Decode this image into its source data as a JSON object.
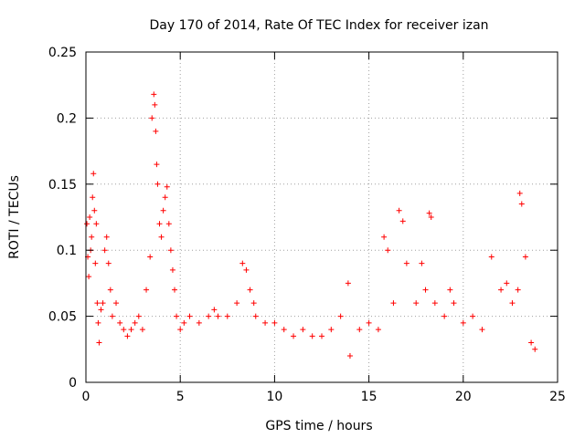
{
  "chart_data": {
    "type": "scatter",
    "title": "Day 170 of 2014, Rate Of TEC Index for receiver izan",
    "xlabel": "GPS time / hours",
    "ylabel": "ROTI / TECUs",
    "xlim": [
      0,
      25
    ],
    "ylim": [
      0,
      0.25
    ],
    "x_ticks": [
      0,
      5,
      10,
      15,
      20,
      25
    ],
    "x_tick_labels": [
      "0",
      "5",
      "10",
      "15",
      "20",
      "25"
    ],
    "y_ticks": [
      0,
      0.05,
      0.1,
      0.15,
      0.2,
      0.25
    ],
    "y_tick_labels": [
      "0",
      "0.05",
      "0.1",
      "0.15",
      "0.2",
      "0.25"
    ],
    "grid": true,
    "marker": "+",
    "color": "#ff0000",
    "series": [
      {
        "x": [
          0.05,
          0.1,
          0.15,
          0.2,
          0.25,
          0.3,
          0.35,
          0.4,
          0.45,
          0.5,
          0.55,
          0.6,
          0.65,
          0.7,
          0.8,
          0.9,
          1.0,
          1.1,
          1.2,
          1.3,
          1.4,
          1.6,
          1.8,
          2.0,
          2.2,
          2.4,
          2.6,
          2.8,
          3.0,
          3.2,
          3.4,
          3.5,
          3.6,
          3.65,
          3.7,
          3.75,
          3.8,
          3.9,
          4.0,
          4.1,
          4.2,
          4.3,
          4.4,
          4.5,
          4.6,
          4.7,
          4.8,
          5.0,
          5.2,
          5.5,
          6.0,
          6.5,
          6.8,
          7.0,
          7.5,
          8.0,
          8.3,
          8.5,
          8.7,
          8.9,
          9.0,
          9.5,
          10.0,
          10.5,
          11.0,
          11.5,
          12.0,
          12.5,
          13.0,
          13.5,
          13.9,
          14.0,
          14.5,
          15.0,
          15.5,
          15.8,
          16.0,
          16.3,
          16.6,
          16.8,
          17.0,
          17.5,
          17.8,
          18.0,
          18.2,
          18.3,
          18.5,
          19.0,
          19.3,
          19.5,
          20.0,
          20.5,
          21.0,
          21.5,
          22.0,
          22.3,
          22.6,
          22.9,
          23.0,
          23.1,
          23.3,
          23.6,
          23.8
        ],
        "y": [
          0.12,
          0.095,
          0.08,
          0.125,
          0.1,
          0.11,
          0.14,
          0.158,
          0.13,
          0.09,
          0.12,
          0.06,
          0.045,
          0.03,
          0.055,
          0.06,
          0.1,
          0.11,
          0.09,
          0.07,
          0.05,
          0.06,
          0.045,
          0.04,
          0.035,
          0.04,
          0.045,
          0.05,
          0.04,
          0.07,
          0.095,
          0.2,
          0.218,
          0.21,
          0.19,
          0.165,
          0.15,
          0.12,
          0.11,
          0.13,
          0.14,
          0.148,
          0.12,
          0.1,
          0.085,
          0.07,
          0.05,
          0.04,
          0.045,
          0.05,
          0.045,
          0.05,
          0.055,
          0.05,
          0.05,
          0.06,
          0.09,
          0.085,
          0.07,
          0.06,
          0.05,
          0.045,
          0.045,
          0.04,
          0.035,
          0.04,
          0.035,
          0.035,
          0.04,
          0.05,
          0.075,
          0.02,
          0.04,
          0.045,
          0.04,
          0.11,
          0.1,
          0.06,
          0.13,
          0.122,
          0.09,
          0.06,
          0.09,
          0.07,
          0.128,
          0.125,
          0.06,
          0.05,
          0.07,
          0.06,
          0.045,
          0.05,
          0.04,
          0.095,
          0.07,
          0.075,
          0.06,
          0.07,
          0.143,
          0.135,
          0.095,
          0.03,
          0.025
        ]
      }
    ]
  }
}
